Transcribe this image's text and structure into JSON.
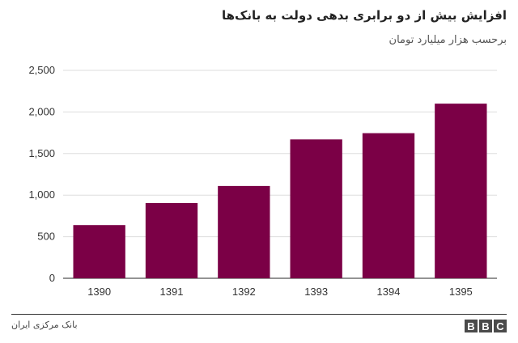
{
  "chart_data": {
    "type": "bar",
    "title": "افزایش بیش از دو برابری بدهی دولت به بانک‌ها",
    "subtitle": "برحسب هزار میلیارد تومان",
    "categories": [
      "1390",
      "1391",
      "1392",
      "1393",
      "1394",
      "1395"
    ],
    "values": [
      640,
      905,
      1110,
      1670,
      1745,
      2100
    ],
    "ylim": [
      0,
      2500
    ],
    "yticks": [
      0,
      500,
      1000,
      1500,
      2000,
      2500
    ],
    "ytick_labels": [
      "0",
      "500",
      "1,000",
      "1,500",
      "2,000",
      "2,500"
    ],
    "grid": true,
    "bar_color": "#7b0046",
    "grid_color": "#dddddd"
  },
  "footer": {
    "source": "بانک مرکزی ایران",
    "logo": [
      "B",
      "B",
      "C"
    ]
  }
}
